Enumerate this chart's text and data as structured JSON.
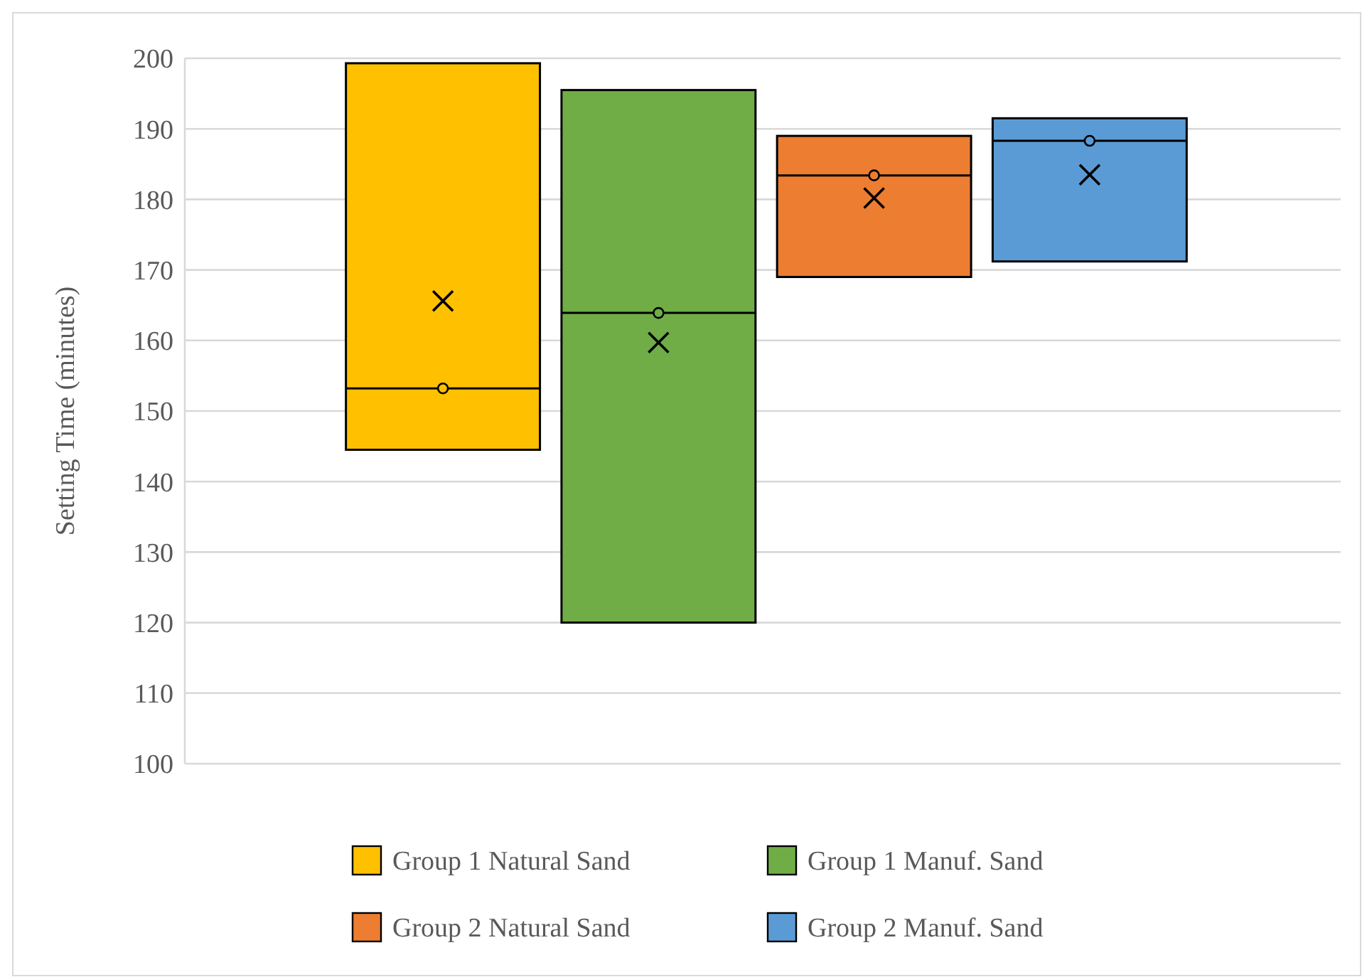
{
  "chart_data": {
    "type": "box",
    "ylabel": "Setting Time (minutes)",
    "categories": [
      null
    ],
    "ylim": [
      100,
      200
    ],
    "yticks": [
      100,
      110,
      120,
      130,
      140,
      150,
      160,
      170,
      180,
      190,
      200
    ],
    "grid": "y",
    "legend": "bottom",
    "series": [
      {
        "name": "Group 1 Natural Sand",
        "color": "#ffc000",
        "boxes": [
          {
            "low": 144.5,
            "q1": 144.5,
            "median": 153.2,
            "q3": 199.3,
            "high": 199.3,
            "mean": 165.6,
            "outliers": [
              153.2
            ]
          }
        ]
      },
      {
        "name": "Group 1 Manuf. Sand",
        "color": "#70ad47",
        "boxes": [
          {
            "low": 120,
            "q1": 120,
            "median": 163.9,
            "q3": 195.5,
            "high": 195.5,
            "mean": 159.7,
            "outliers": [
              163.9
            ]
          }
        ]
      },
      {
        "name": "Group 2 Natural Sand",
        "color": "#ed7d31",
        "boxes": [
          {
            "low": 169,
            "q1": 169,
            "median": 183.4,
            "q3": 189,
            "high": 189,
            "mean": 180.2,
            "outliers": [
              183.4
            ]
          }
        ]
      },
      {
        "name": "Group 2 Manuf. Sand",
        "color": "#5b9bd5",
        "boxes": [
          {
            "low": 171.2,
            "q1": 171.2,
            "median": 188.3,
            "q3": 191.5,
            "high": 191.5,
            "mean": 183.5,
            "outliers": [
              188.3
            ]
          }
        ]
      }
    ]
  }
}
